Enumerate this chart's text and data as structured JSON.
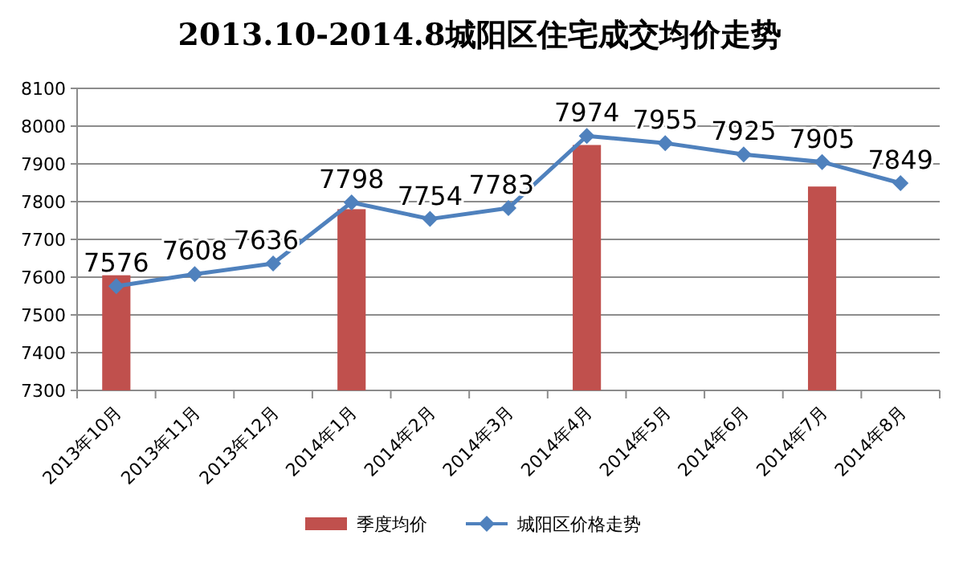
{
  "chart_data": {
    "type": "bar",
    "title": "2013.10-2014.8城阳区住宅成交均价走势",
    "categories": [
      "2013年10月",
      "2013年11月",
      "2013年12月",
      "2014年1月",
      "2014年2月",
      "2014年3月",
      "2014年4月",
      "2014年5月",
      "2014年6月",
      "2014年7月",
      "2014年8月"
    ],
    "series": [
      {
        "name": "季度均价",
        "color": "#c0504d",
        "values": [
          7605,
          null,
          null,
          7780,
          null,
          null,
          7950,
          null,
          null,
          7840,
          null
        ]
      },
      {
        "name": "城阳区价格走势",
        "type": "line",
        "color": "#4f81bd",
        "marker": "diamond",
        "data_labels": true,
        "values": [
          7576,
          7608,
          7636,
          7798,
          7754,
          7783,
          7974,
          7955,
          7925,
          7905,
          7849
        ]
      }
    ],
    "ylim": [
      7300,
      8100
    ],
    "yticks": [
      7300,
      7400,
      7500,
      7600,
      7700,
      7800,
      7900,
      8000,
      8100
    ],
    "grid": "y",
    "legend": "bottom"
  }
}
